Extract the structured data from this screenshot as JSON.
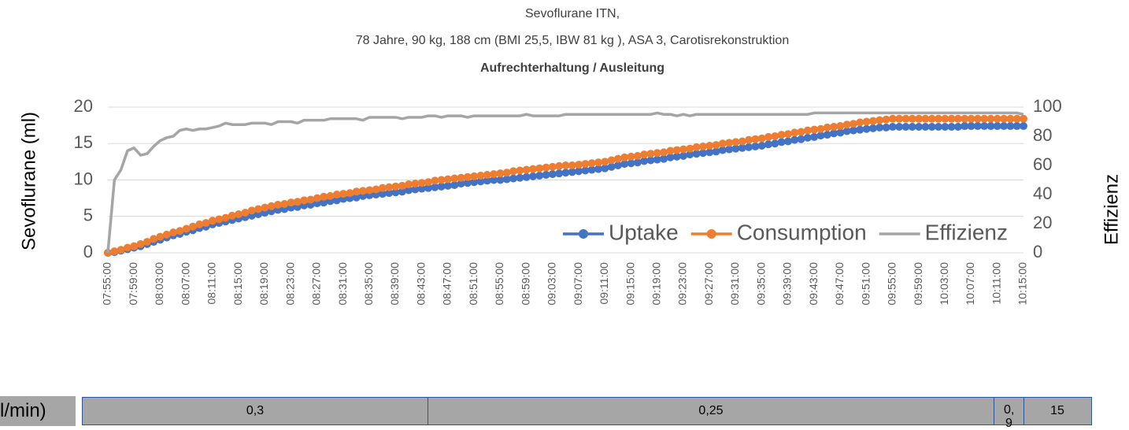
{
  "chart_data": {
    "type": "line",
    "title": "Sevoflurane ITN,",
    "subtitle": "78 Jahre, 90 kg, 188 cm (BMI 25,5, IBW 81 kg ), ASA 3, Carotisrekonstruktion",
    "subheading": "Aufrechterhaltung / Ausleitung",
    "ylabel": "Sevoflurane (ml)",
    "y2label": "Effizienz",
    "ylim": [
      0,
      20
    ],
    "yticks": [
      0,
      5,
      10,
      15,
      20
    ],
    "y2lim": [
      0,
      100
    ],
    "y2ticks": [
      0,
      20,
      40,
      60,
      80,
      100
    ],
    "grid": true,
    "legend": "bottom-right",
    "categories": [
      "07:55:00",
      null,
      null,
      null,
      "07:59:00",
      null,
      null,
      null,
      "08:03:00",
      null,
      null,
      null,
      "08:07:00",
      null,
      null,
      null,
      "08:11:00",
      null,
      null,
      null,
      "08:15:00",
      null,
      null,
      null,
      "08:19:00",
      null,
      null,
      null,
      "08:23:00",
      null,
      null,
      null,
      "08:27:00",
      null,
      null,
      null,
      "08:31:00",
      null,
      null,
      null,
      "08:35:00",
      null,
      null,
      null,
      "08:39:00",
      null,
      null,
      null,
      "08:43:00",
      null,
      null,
      null,
      "08:47:00",
      null,
      null,
      null,
      "08:51:00",
      null,
      null,
      null,
      "08:55:00",
      null,
      null,
      null,
      "08:59:00",
      null,
      null,
      null,
      "09:03:00",
      null,
      null,
      null,
      "09:07:00",
      null,
      null,
      null,
      "09:11:00",
      null,
      null,
      null,
      "09:15:00",
      null,
      null,
      null,
      "09:19:00",
      null,
      null,
      null,
      "09:23:00",
      null,
      null,
      null,
      "09:27:00",
      null,
      null,
      null,
      "09:31:00",
      null,
      null,
      null,
      "09:35:00",
      null,
      null,
      null,
      "09:39:00",
      null,
      null,
      null,
      "09:43:00",
      null,
      null,
      null,
      "09:47:00",
      null,
      null,
      null,
      "09:51:00",
      null,
      null,
      null,
      "09:55:00",
      null,
      null,
      null,
      "09:59:00",
      null,
      null,
      null,
      "10:03:00",
      null,
      null,
      null,
      "10:07:00",
      null,
      null,
      null,
      "10:11:00",
      null,
      null,
      null,
      "10:15:00"
    ],
    "series": [
      {
        "name": "Uptake",
        "color": "#4472c4",
        "marker": true,
        "values": [
          0,
          0.1,
          0.3,
          0.5,
          0.7,
          0.9,
          1.2,
          1.5,
          1.8,
          2.1,
          2.4,
          2.6,
          2.9,
          3.1,
          3.4,
          3.6,
          3.9,
          4.1,
          4.3,
          4.5,
          4.7,
          4.9,
          5.1,
          5.3,
          5.5,
          5.7,
          5.9,
          6.0,
          6.2,
          6.3,
          6.5,
          6.6,
          6.8,
          6.9,
          7.1,
          7.2,
          7.4,
          7.5,
          7.6,
          7.8,
          7.9,
          8.0,
          8.1,
          8.2,
          8.3,
          8.4,
          8.6,
          8.7,
          8.8,
          8.9,
          9.0,
          9.1,
          9.2,
          9.3,
          9.5,
          9.6,
          9.7,
          9.8,
          9.9,
          10.0,
          10.0,
          10.1,
          10.2,
          10.3,
          10.4,
          10.5,
          10.6,
          10.7,
          10.8,
          10.9,
          11.0,
          11.1,
          11.2,
          11.3,
          11.4,
          11.5,
          11.6,
          11.8,
          12.0,
          12.2,
          12.3,
          12.4,
          12.6,
          12.7,
          12.8,
          12.9,
          13.1,
          13.2,
          13.3,
          13.5,
          13.6,
          13.7,
          13.8,
          13.9,
          14.1,
          14.2,
          14.3,
          14.4,
          14.5,
          14.6,
          14.7,
          14.9,
          15.0,
          15.2,
          15.3,
          15.5,
          15.6,
          15.8,
          15.9,
          16.1,
          16.2,
          16.4,
          16.5,
          16.7,
          16.8,
          16.9,
          17.0,
          17.1,
          17.2,
          17.2,
          17.3,
          17.3,
          17.3,
          17.3,
          17.3,
          17.3,
          17.3,
          17.3,
          17.3,
          17.3,
          17.3,
          17.4,
          17.4,
          17.4,
          17.4,
          17.4,
          17.4,
          17.4,
          17.4,
          17.4,
          17.4
        ]
      },
      {
        "name": "Consumption",
        "color": "#ed7d31",
        "marker": true,
        "values": [
          0,
          0.2,
          0.4,
          0.7,
          0.9,
          1.2,
          1.5,
          1.9,
          2.2,
          2.5,
          2.8,
          3.0,
          3.3,
          3.6,
          3.9,
          4.1,
          4.4,
          4.6,
          4.8,
          5.1,
          5.3,
          5.5,
          5.8,
          6.0,
          6.2,
          6.4,
          6.6,
          6.7,
          6.9,
          7.0,
          7.2,
          7.3,
          7.5,
          7.7,
          7.8,
          8.0,
          8.1,
          8.2,
          8.4,
          8.5,
          8.6,
          8.7,
          8.9,
          9.0,
          9.1,
          9.2,
          9.4,
          9.5,
          9.6,
          9.7,
          9.9,
          10.0,
          10.1,
          10.2,
          10.3,
          10.4,
          10.5,
          10.6,
          10.7,
          10.8,
          10.9,
          11.0,
          11.2,
          11.3,
          11.4,
          11.5,
          11.6,
          11.7,
          11.8,
          11.9,
          12.0,
          12.0,
          12.1,
          12.2,
          12.3,
          12.4,
          12.5,
          12.7,
          12.9,
          13.1,
          13.2,
          13.3,
          13.5,
          13.6,
          13.7,
          13.8,
          14.0,
          14.1,
          14.2,
          14.3,
          14.5,
          14.6,
          14.7,
          14.8,
          15.0,
          15.1,
          15.2,
          15.3,
          15.5,
          15.6,
          15.7,
          15.9,
          16.0,
          16.2,
          16.3,
          16.5,
          16.6,
          16.8,
          16.9,
          17.0,
          17.2,
          17.3,
          17.4,
          17.6,
          17.7,
          17.9,
          18.0,
          18.1,
          18.2,
          18.3,
          18.4,
          18.4,
          18.4,
          18.4,
          18.4,
          18.4,
          18.4,
          18.4,
          18.4,
          18.4,
          18.4,
          18.4,
          18.4,
          18.4,
          18.4,
          18.4,
          18.4,
          18.4,
          18.4,
          18.4,
          18.4
        ]
      },
      {
        "name": "Effizienz",
        "color": "#a5a5a5",
        "marker": false,
        "axis": "y2",
        "values": [
          0,
          50,
          57,
          70,
          72,
          67,
          68,
          73,
          77,
          79,
          80,
          84,
          85,
          84,
          85,
          85,
          86,
          87,
          89,
          88,
          88,
          88,
          89,
          89,
          89,
          88,
          90,
          90,
          90,
          89,
          91,
          91,
          91,
          91,
          92,
          92,
          92,
          92,
          92,
          91,
          93,
          93,
          93,
          93,
          93,
          92,
          93,
          93,
          93,
          94,
          94,
          93,
          94,
          94,
          94,
          93,
          94,
          94,
          94,
          94,
          94,
          94,
          94,
          94,
          95,
          94,
          94,
          94,
          94,
          94,
          95,
          95,
          95,
          95,
          95,
          95,
          95,
          95,
          95,
          95,
          95,
          95,
          95,
          95,
          96,
          95,
          95,
          94,
          95,
          94,
          95,
          95,
          95,
          95,
          95,
          95,
          95,
          95,
          95,
          95,
          95,
          95,
          95,
          95,
          95,
          95,
          95,
          95,
          96,
          96,
          96,
          96,
          96,
          96,
          96,
          96,
          96,
          96,
          96,
          96,
          96,
          96,
          96,
          96,
          96,
          96,
          96,
          96,
          96,
          96,
          96,
          96,
          96,
          96,
          96,
          96,
          96,
          96,
          96,
          96,
          95
        ]
      }
    ]
  },
  "flow_bar": {
    "label": "l/min)",
    "cells": [
      "0,3",
      "0,25",
      "0,9",
      "15"
    ]
  }
}
